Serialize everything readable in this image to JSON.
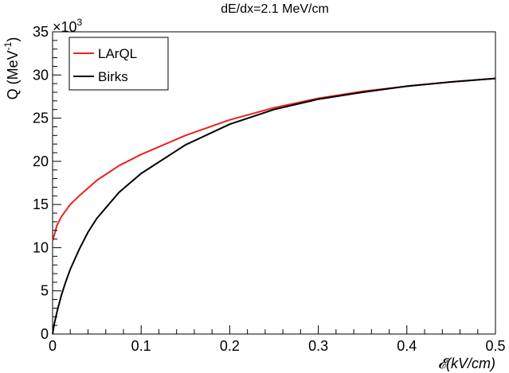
{
  "chart_data": {
    "type": "line",
    "title": "dE/dx=2.1 MeV/cm",
    "xlabel": "𝓔(kV/cm)",
    "ylabel_main": "Q (MeV",
    "ylabel_sup": "-1",
    "ylabel_close": ")",
    "y_multiplier_base": "×10",
    "y_multiplier_exp": "3",
    "xlim": [
      0,
      0.5
    ],
    "ylim": [
      0,
      35
    ],
    "x_ticks": [
      0,
      0.1,
      0.2,
      0.3,
      0.4,
      0.5
    ],
    "x_tick_labels": [
      "0",
      "0.1",
      "0.2",
      "0.3",
      "0.4",
      "0.5"
    ],
    "y_ticks": [
      0,
      5,
      10,
      15,
      20,
      25,
      30,
      35
    ],
    "y_tick_labels": [
      "0",
      "5",
      "10",
      "15",
      "20",
      "25",
      "30",
      "35"
    ],
    "grid": false,
    "legend_position": "top-left",
    "series": [
      {
        "name": "LArQL",
        "color": "#e8231e",
        "x": [
          0,
          0.005,
          0.01,
          0.02,
          0.03,
          0.05,
          0.075,
          0.1,
          0.15,
          0.2,
          0.25,
          0.3,
          0.35,
          0.4,
          0.45,
          0.5
        ],
        "y": [
          10.8,
          12.6,
          13.6,
          15.0,
          16.0,
          17.8,
          19.5,
          20.8,
          23.0,
          24.8,
          26.2,
          27.3,
          28.1,
          28.7,
          29.2,
          29.6
        ]
      },
      {
        "name": "Birks",
        "color": "#000000",
        "x": [
          0,
          0.002,
          0.005,
          0.01,
          0.015,
          0.02,
          0.03,
          0.04,
          0.05,
          0.075,
          0.1,
          0.15,
          0.2,
          0.25,
          0.3,
          0.35,
          0.4,
          0.45,
          0.5
        ],
        "y": [
          0,
          1.2,
          2.6,
          4.5,
          6.1,
          7.5,
          9.8,
          11.8,
          13.4,
          16.4,
          18.6,
          21.9,
          24.3,
          26.0,
          27.2,
          28.0,
          28.7,
          29.2,
          29.6
        ]
      }
    ]
  }
}
